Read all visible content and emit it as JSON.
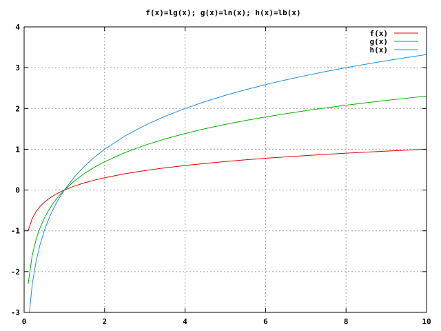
{
  "chart_data": {
    "type": "line",
    "title": "f(x)=lg(x); g(x)=ln(x); h(x)=lb(x)",
    "xlabel": "",
    "ylabel": "",
    "xlim": [
      0,
      10
    ],
    "ylim": [
      -3,
      4
    ],
    "grid": true,
    "legend_position": "top-right",
    "x_ticks": [
      "0",
      "2",
      "4",
      "6",
      "8",
      "10"
    ],
    "y_ticks": [
      "-3",
      "-2",
      "-1",
      "0",
      "1",
      "2",
      "3",
      "4"
    ],
    "x": [
      0.1,
      0.2,
      0.3,
      0.4,
      0.5,
      0.6,
      0.7,
      0.8,
      0.9,
      1,
      1.25,
      1.5,
      1.75,
      2,
      2.5,
      3,
      3.5,
      4,
      4.5,
      5,
      5.5,
      6,
      6.5,
      7,
      7.5,
      8,
      8.5,
      9,
      9.5,
      10
    ],
    "series": [
      {
        "name": "f(x)",
        "color": "#e00000",
        "values": [
          -1,
          -0.699,
          -0.523,
          -0.398,
          -0.301,
          -0.222,
          -0.155,
          -0.097,
          -0.046,
          0,
          0.097,
          0.176,
          0.243,
          0.301,
          0.398,
          0.477,
          0.544,
          0.602,
          0.653,
          0.699,
          0.74,
          0.778,
          0.813,
          0.845,
          0.875,
          0.903,
          0.929,
          0.954,
          0.978,
          1
        ]
      },
      {
        "name": "g(x)",
        "color": "#00b000",
        "values": [
          -2.303,
          -1.609,
          -1.204,
          -0.916,
          -0.693,
          -0.511,
          -0.357,
          -0.223,
          -0.105,
          0,
          0.223,
          0.405,
          0.56,
          0.693,
          0.916,
          1.099,
          1.253,
          1.386,
          1.504,
          1.609,
          1.705,
          1.792,
          1.872,
          1.946,
          2.015,
          2.079,
          2.14,
          2.197,
          2.251,
          2.303
        ]
      },
      {
        "name": "h(x)",
        "color": "#1a8fd8",
        "values": [
          -3.322,
          -2.322,
          -1.737,
          -1.322,
          -1,
          -0.737,
          -0.515,
          -0.322,
          -0.152,
          0,
          0.322,
          0.585,
          0.807,
          1,
          1.322,
          1.585,
          1.807,
          2,
          2.17,
          2.322,
          2.459,
          2.585,
          2.7,
          2.807,
          2.907,
          3,
          3.087,
          3.17,
          3.248,
          3.322
        ]
      }
    ]
  }
}
